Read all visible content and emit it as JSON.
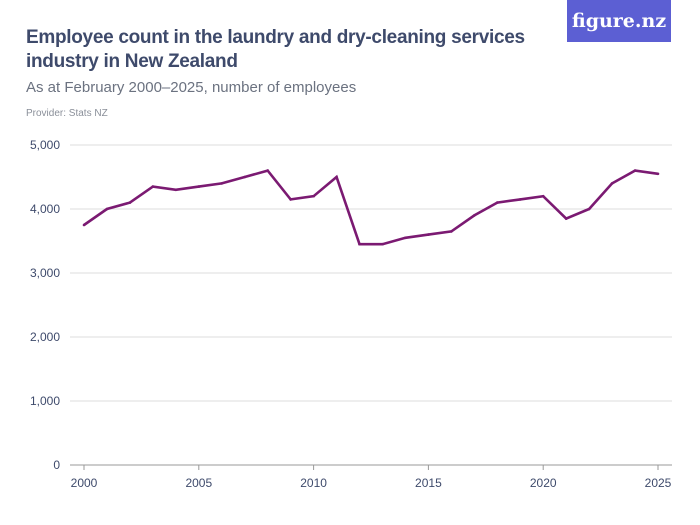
{
  "header": {
    "title": "Employee count in the laundry and dry-cleaning services industry in New Zealand",
    "subtitle": "As at February 2000–2025, number of employees",
    "provider": "Provider: Stats NZ",
    "logo": "figure.nz"
  },
  "colors": {
    "line": "#7b1a72",
    "grid": "#dddddd",
    "text": "#3e4a6b",
    "logo_bg": "#5c5fd3"
  },
  "chart_data": {
    "type": "line",
    "title": "Employee count in the laundry and dry-cleaning services industry in New Zealand",
    "subtitle": "As at February 2000–2025, number of employees",
    "xlabel": "",
    "ylabel": "",
    "x": [
      2000,
      2001,
      2002,
      2003,
      2004,
      2005,
      2006,
      2007,
      2008,
      2009,
      2010,
      2011,
      2012,
      2013,
      2014,
      2015,
      2016,
      2017,
      2018,
      2019,
      2020,
      2021,
      2022,
      2023,
      2024,
      2025
    ],
    "values": [
      3750,
      4000,
      4100,
      4350,
      4300,
      4350,
      4400,
      4500,
      4600,
      4150,
      4200,
      4500,
      3450,
      3450,
      3550,
      3600,
      3650,
      3900,
      4100,
      4150,
      4200,
      3850,
      4000,
      4400,
      4600,
      4550
    ],
    "xlim": [
      2000,
      2025
    ],
    "ylim": [
      0,
      5000
    ],
    "xticks": [
      "2000",
      "2005",
      "2010",
      "2015",
      "2020",
      "2025"
    ],
    "yticks": [
      "0",
      "1,000",
      "2,000",
      "3,000",
      "4,000",
      "5,000"
    ],
    "grid": true,
    "legend": "none"
  }
}
